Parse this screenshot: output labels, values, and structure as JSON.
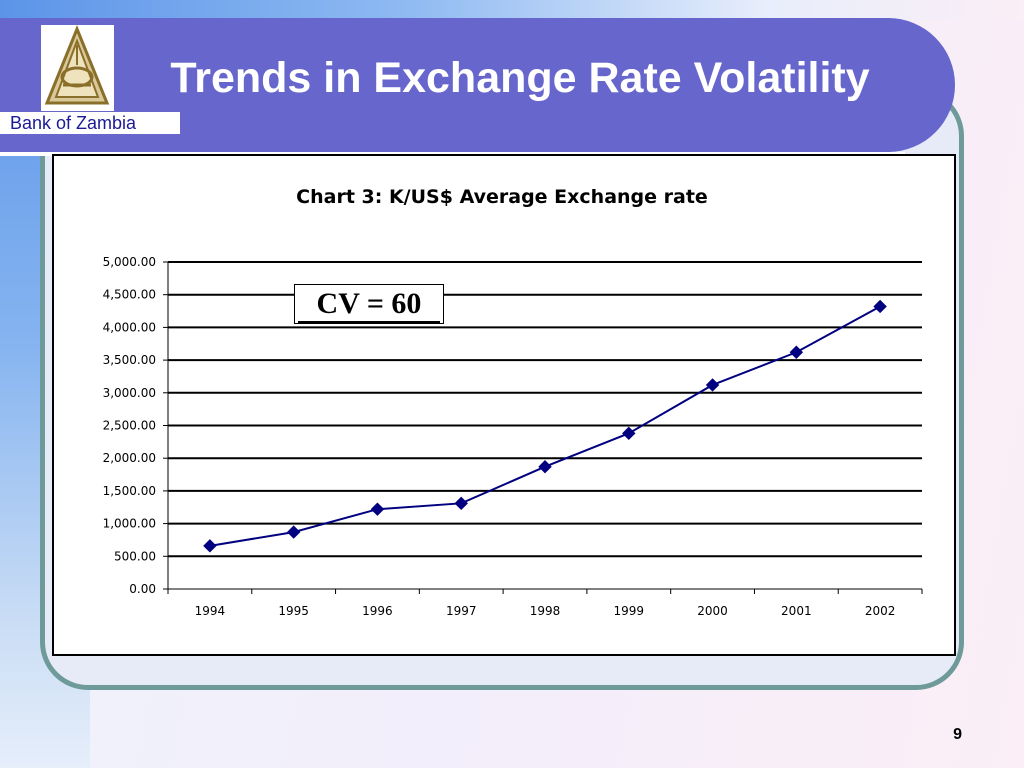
{
  "slide": {
    "title": "Trends in Exchange Rate Volatility",
    "logo_caption": "Bank of Zambia",
    "page_number": "9",
    "annotation": "CV = 60"
  },
  "colors": {
    "title_bar": "#6666cc",
    "frame_border": "#6f9a9a",
    "series_line": "#000080",
    "marker": "#000080"
  },
  "chart_data": {
    "type": "line",
    "title": "Chart 3: K/US$ Average Exchange rate",
    "xlabel": "",
    "ylabel": "",
    "categories": [
      "1994",
      "1995",
      "1996",
      "1997",
      "1998",
      "1999",
      "2000",
      "2001",
      "2002"
    ],
    "series": [
      {
        "values": [
          660,
          870,
          1220,
          1310,
          1870,
          2380,
          3120,
          3620,
          4320
        ]
      }
    ],
    "ylim": [
      0,
      5000
    ],
    "y_ticks": [
      "0.00",
      "500.00",
      "1,000.00",
      "1,500.00",
      "2,000.00",
      "2,500.00",
      "3,000.00",
      "3,500.00",
      "4,000.00",
      "4,500.00",
      "5,000.00"
    ],
    "y_tick_values": [
      0,
      500,
      1000,
      1500,
      2000,
      2500,
      3000,
      3500,
      4000,
      4500,
      5000
    ],
    "grid": true,
    "marker": "diamond",
    "legend": "none"
  }
}
